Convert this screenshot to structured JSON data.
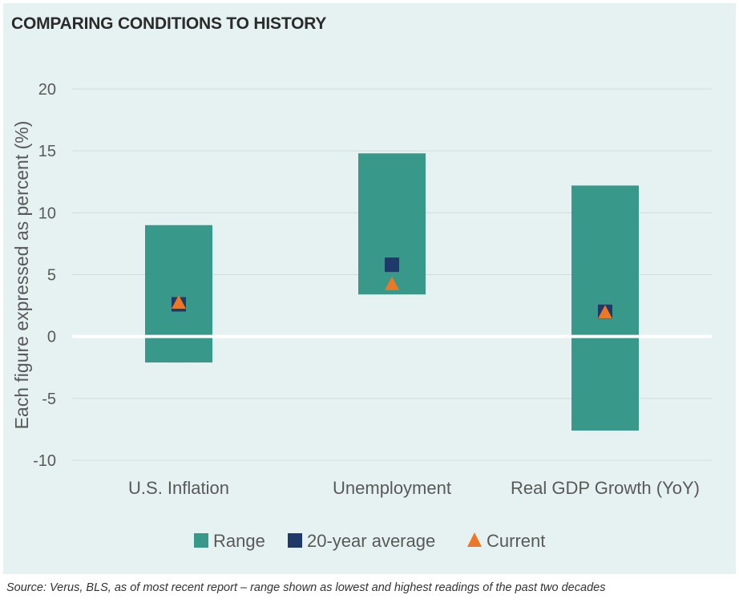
{
  "title": "COMPARING CONDITIONS TO HISTORY",
  "source": "Source: Verus, BLS, as of most recent report – range shown as lowest and highest readings of the past two decades",
  "colors": {
    "background": "#e6f1f1",
    "range": "#38998a",
    "average": "#1f3a68",
    "current": "#ec7725",
    "zero_line": "#ffffff",
    "grid": "#d0dcdc",
    "text": "#595959"
  },
  "chart_data": {
    "type": "range",
    "ylabel": "Each figure expressed as percent (%)",
    "ylim": [
      -10,
      20
    ],
    "yticks": [
      20,
      15,
      10,
      5,
      0,
      -5,
      -10
    ],
    "categories": [
      "U.S. Inflation",
      "Unemployment",
      "Real GDP Growth (YoY)"
    ],
    "range_low": [
      -2.1,
      3.4,
      -7.6
    ],
    "range_high": [
      9.0,
      14.8,
      12.2
    ],
    "series": [
      {
        "name": "20-year average",
        "marker": "square",
        "values": [
          2.6,
          5.8,
          2.0
        ]
      },
      {
        "name": "Current",
        "marker": "triangle",
        "values": [
          2.7,
          4.2,
          1.9
        ]
      }
    ],
    "legend": [
      "Range",
      "20-year average",
      "Current"
    ],
    "legend_position": "bottom",
    "grid": true
  }
}
